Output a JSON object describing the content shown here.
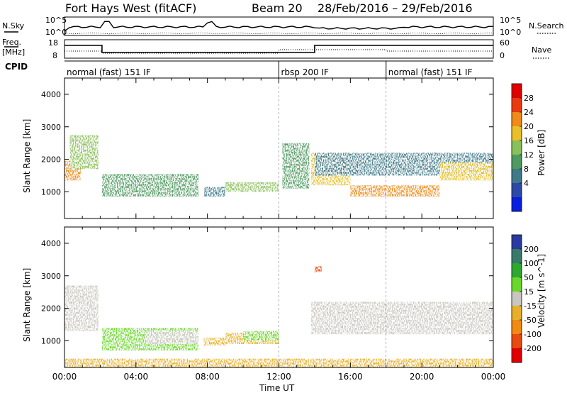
{
  "header": {
    "station": "Fort Hays West (fitACF)",
    "beam": "Beam 20",
    "dates": "28/Feb/2016 – 29/Feb/2016"
  },
  "side_labels": {
    "n_sky": "N.Sky",
    "n_search": "N.Search",
    "freq": "Freq.",
    "freq_unit": "[MHz]",
    "nave": "Nave",
    "cpid": "CPID"
  },
  "nsky_axis": {
    "top": "10^5",
    "bottom": "10^0"
  },
  "freq_axis": {
    "left_top": "18",
    "left_bottom": "8",
    "right_top": "60",
    "right_bottom": "0"
  },
  "cpid_segments": [
    {
      "label": "normal (fast) 151 IF",
      "start_h": 0,
      "end_h": 12
    },
    {
      "label": "rbsp 200 IF",
      "start_h": 12,
      "end_h": 18
    },
    {
      "label": "normal (fast) 151 IF",
      "start_h": 18,
      "end_h": 24
    }
  ],
  "x_axis": {
    "label": "Time UT",
    "ticks": [
      "00:00",
      "04:00",
      "08:00",
      "12:00",
      "16:00",
      "20:00",
      "00:00"
    ]
  },
  "y_axis": {
    "label": "Slant Range [km]",
    "ticks": [
      "1000",
      "2000",
      "3000",
      "4000"
    ]
  },
  "power_scale": {
    "label": "Power [dB]",
    "ticks": [
      "4",
      "8",
      "12",
      "16",
      "20",
      "24",
      "28"
    ],
    "colors": [
      "#0a1ee0",
      "#2c4aa5",
      "#3f7a8a",
      "#4f9a60",
      "#8ac05a",
      "#e8c02a",
      "#f08a18",
      "#e83a10",
      "#e00000"
    ]
  },
  "velocity_scale": {
    "label": "Velocity [m s^-1]",
    "ticks": [
      "200",
      "100",
      "50",
      "15",
      "-15",
      "-50",
      "-100",
      "-200"
    ],
    "colors": [
      "#2a3aa0",
      "#3a7a6a",
      "#2ea82e",
      "#6ad82a",
      "#c8c6be",
      "#e8b02a",
      "#f08a10",
      "#e84a10",
      "#e00000"
    ]
  },
  "chart_data": {
    "type": "heatmap",
    "x_range_hours": [
      0,
      24
    ],
    "ylim_km": [
      180,
      4500
    ],
    "gs_flag_color": "#c8c6be",
    "power_regions": [
      {
        "t": [
          0.0,
          0.9
        ],
        "r": [
          1350,
          1950
        ],
        "power_db": 24
      },
      {
        "t": [
          0.3,
          1.9
        ],
        "r": [
          1700,
          2750
        ],
        "power_db": 16
      },
      {
        "t": [
          2.1,
          7.5
        ],
        "r": [
          850,
          1550
        ],
        "power_db": 14
      },
      {
        "t": [
          7.8,
          9.0
        ],
        "r": [
          850,
          1150
        ],
        "power_db": 10
      },
      {
        "t": [
          9.0,
          12.0
        ],
        "r": [
          1000,
          1300
        ],
        "power_db": 16
      },
      {
        "t": [
          12.2,
          13.7
        ],
        "r": [
          1100,
          2500
        ],
        "power_db": 14
      },
      {
        "t": [
          13.8,
          16.0
        ],
        "r": [
          1200,
          2200
        ],
        "power_db": 20
      },
      {
        "t": [
          16.0,
          21.0
        ],
        "r": [
          850,
          1200
        ],
        "power_db": 26
      },
      {
        "t": [
          14.0,
          24.0
        ],
        "r": [
          1500,
          2200
        ],
        "power_db": 10
      },
      {
        "t": [
          21.0,
          24.0
        ],
        "r": [
          1350,
          1900
        ],
        "power_db": 22
      }
    ],
    "velocity_regions": [
      {
        "t": [
          0.0,
          1.9
        ],
        "r": [
          1300,
          2700
        ],
        "class": "ground_scatter"
      },
      {
        "t": [
          2.1,
          7.5
        ],
        "r": [
          700,
          1400
        ],
        "velocity_ms": 25
      },
      {
        "t": [
          4.5,
          7.5
        ],
        "r": [
          900,
          1300
        ],
        "class": "ground_scatter"
      },
      {
        "t": [
          7.8,
          9.0
        ],
        "r": [
          850,
          1100
        ],
        "velocity_ms": -30
      },
      {
        "t": [
          9.0,
          12.0
        ],
        "r": [
          900,
          1250
        ],
        "velocity_ms": -25
      },
      {
        "t": [
          10.0,
          12.0
        ],
        "r": [
          1000,
          1300
        ],
        "velocity_ms": 20
      },
      {
        "t": [
          13.8,
          24.0
        ],
        "r": [
          1200,
          2200
        ],
        "class": "ground_scatter"
      },
      {
        "t": [
          14.0,
          14.4
        ],
        "r": [
          3100,
          3300
        ],
        "velocity_ms": -150
      },
      {
        "t": [
          0.0,
          24.0
        ],
        "r": [
          180,
          450
        ],
        "velocity_ms": -20
      }
    ]
  }
}
